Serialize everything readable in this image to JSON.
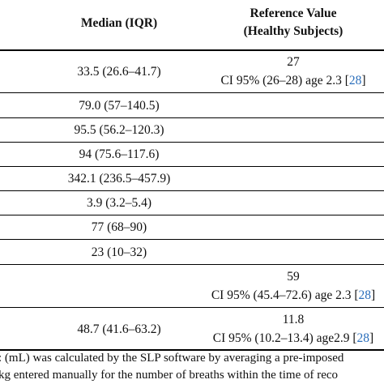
{
  "header": {
    "median_label": "Median (IQR)",
    "reference_line1": "Reference Value",
    "reference_line2": "(Healthy Subjects)"
  },
  "rows": [
    {
      "median": "33.5 (26.6–41.7)",
      "ref_value": "27",
      "ref_ci": "CI 95% (26–28) age 2.3 [",
      "ref_cite": "28",
      "ref_close": "]"
    },
    {
      "median": "79.0 (57–140.5)"
    },
    {
      "median": "95.5 (56.2–120.3)"
    },
    {
      "median": "94 (75.6–117.6)"
    },
    {
      "median": "342.1 (236.5–457.9)"
    },
    {
      "median": "3.9 (3.2–5.4)"
    },
    {
      "median": "77 (68–90)"
    },
    {
      "median": "23 (10–32)"
    },
    {
      "median": "",
      "ref_value": "59",
      "ref_ci": "CI 95% (45.4–72.6) age 2.3 [",
      "ref_cite": "28",
      "ref_close": "]"
    },
    {
      "median": "48.7 (41.6–63.2)",
      "ref_value": "11.8",
      "ref_ci": "CI 95% (10.2–13.4) age2.9 [",
      "ref_cite": "28",
      "ref_close": "]"
    }
  ],
  "footnote": {
    "line1": ": (mL) was calculated by the SLP software by averaging a pre-imposed",
    "line2": "kg entered manually for the number of breaths within the time of reco"
  }
}
